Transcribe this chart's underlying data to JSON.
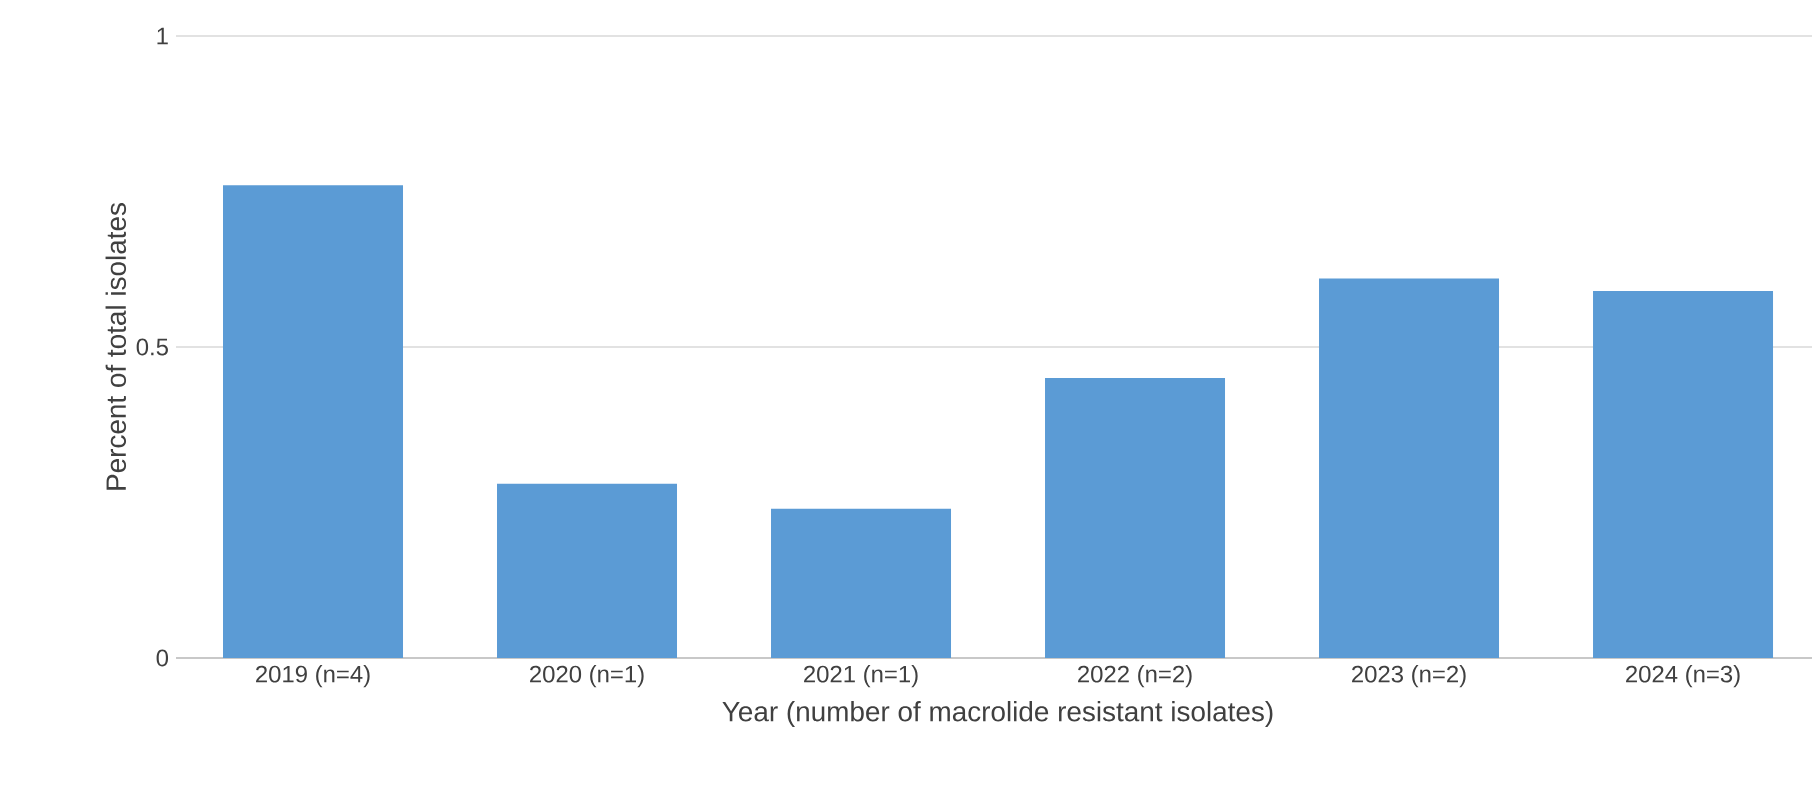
{
  "chart_data": {
    "type": "bar",
    "xlabel": "Year (number of macrolide resistant isolates)",
    "ylabel": "Percent of total isolates",
    "categories": [
      "2019 (n=4)",
      "2020 (n=1)",
      "2021 (n=1)",
      "2022 (n=2)",
      "2023 (n=2)",
      "2024 (n=3)"
    ],
    "values": [
      0.76,
      0.28,
      0.24,
      0.45,
      0.61,
      0.59
    ],
    "color": "#5b9bd5",
    "ylim": [
      0,
      1
    ],
    "yticks": [
      0,
      0.5,
      1
    ],
    "grid": "y"
  }
}
